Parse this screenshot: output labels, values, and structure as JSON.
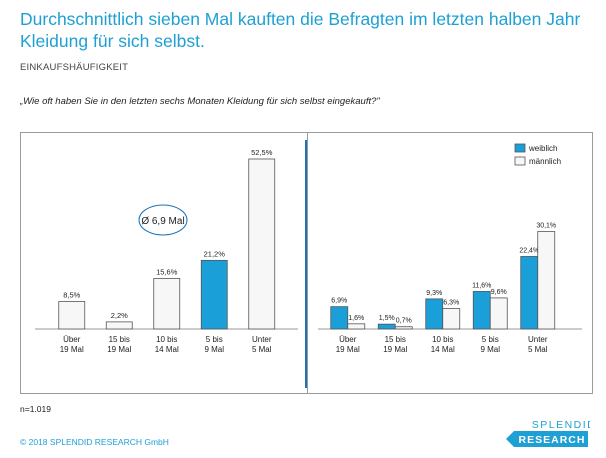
{
  "header": {
    "title": "Durchschnittlich sieben Mal kauften die Befragten im letzten halben Jahr Kleidung für sich selbst.",
    "subtitle": "EINKAUFSHÄUFIGKEIT",
    "question": "„Wie oft haben Sie in den letzten sechs Monaten Kleidung für sich selbst eingekauft?\""
  },
  "colors": {
    "title": "#1fa0d4",
    "bar_fill": "#1a9fd9",
    "bar_outline": "#555555",
    "bar_white": "#f7f7f7",
    "divider": "#1a73b8"
  },
  "chart_data": [
    {
      "type": "bar",
      "categories": [
        "Über\n19 Mal",
        "15 bis\n19 Mal",
        "10 bis\n14 Mal",
        "5 bis\n9 Mal",
        "Unter\n5 Mal"
      ],
      "values": [
        8.5,
        2.2,
        15.6,
        21.2,
        52.5
      ],
      "value_labels": [
        "8,5%",
        "2,2%",
        "15,6%",
        "21,2%",
        "52,5%"
      ],
      "highlight_index": 3,
      "annotation": "Ø 6,9 Mal",
      "ylim": [
        0,
        52.5
      ]
    },
    {
      "type": "bar",
      "categories": [
        "Über\n19 Mal",
        "15 bis\n19 Mal",
        "10 bis\n14 Mal",
        "5 bis\n9 Mal",
        "Unter\n5 Mal"
      ],
      "series": [
        {
          "name": "weiblich",
          "values": [
            6.9,
            1.5,
            9.3,
            11.6,
            22.4
          ],
          "labels": [
            "6,9%",
            "1,5%",
            "9,3%",
            "11,6%",
            "22,4%"
          ]
        },
        {
          "name": "männlich",
          "values": [
            1.6,
            0.7,
            6.3,
            9.6,
            30.1
          ],
          "labels": [
            "1,6%",
            "0,7%",
            "6,3%",
            "9,6%",
            "30,1%"
          ]
        }
      ],
      "legend": "top-right",
      "ylim": [
        0,
        52.5
      ]
    }
  ],
  "footer": {
    "n": "n=1.019",
    "copyright": "© 2018 SPLENDID RESEARCH GmbH",
    "logo_line1": "SPLENDID",
    "logo_line2": "RESEARCH"
  }
}
